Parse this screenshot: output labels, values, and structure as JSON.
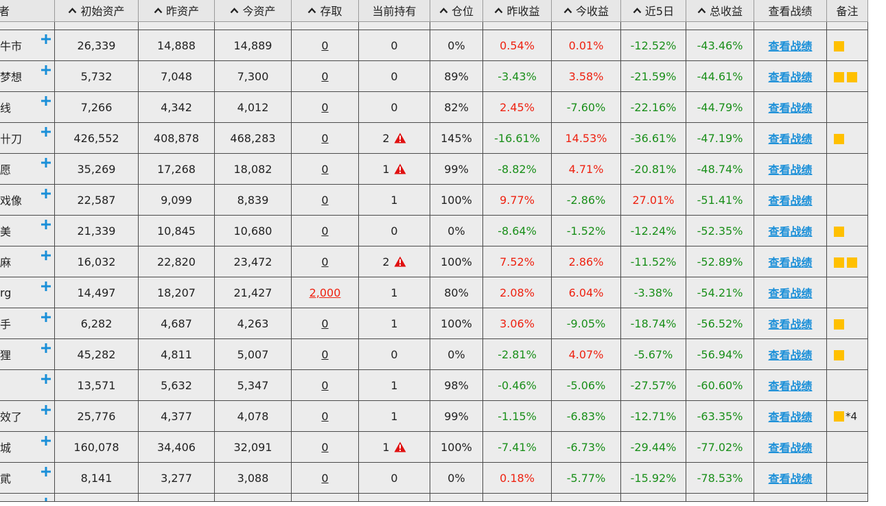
{
  "headers": [
    {
      "key": "name",
      "label": "者",
      "sortable": false
    },
    {
      "key": "initial",
      "label": "初始资产",
      "sortable": true
    },
    {
      "key": "prev",
      "label": "昨资产",
      "sortable": true
    },
    {
      "key": "today",
      "label": "今资产",
      "sortable": true
    },
    {
      "key": "deposit",
      "label": "存取",
      "sortable": true
    },
    {
      "key": "holding",
      "label": "当前持有",
      "sortable": false
    },
    {
      "key": "position",
      "label": "仓位",
      "sortable": true
    },
    {
      "key": "prev_ret",
      "label": "昨收益",
      "sortable": true
    },
    {
      "key": "today_ret",
      "label": "今收益",
      "sortable": true
    },
    {
      "key": "ret5",
      "label": "近5日",
      "sortable": true
    },
    {
      "key": "total_ret",
      "label": "总收益",
      "sortable": true
    },
    {
      "key": "view",
      "label": "查看战绩",
      "sortable": false
    },
    {
      "key": "note",
      "label": "备注",
      "sortable": false
    }
  ],
  "colors": {
    "red": "#ee2211",
    "green": "#1a8f1a",
    "link": "#1a8fd8",
    "note": "#ffc000",
    "plus": "#1a8fd8",
    "warn": "#e01010"
  },
  "view_label": "查看战绩",
  "rows": [
    {
      "name": "牛市",
      "initial": "26,339",
      "prev": "14,888",
      "today": "14,889",
      "deposit": "0",
      "holding": "0",
      "warn": false,
      "position": "0%",
      "prev_ret": "0.54%",
      "today_ret": "0.01%",
      "ret5": "-12.52%",
      "total_ret": "-43.46%",
      "note_squares": 1,
      "note_text": ""
    },
    {
      "name": "梦想",
      "initial": "5,732",
      "prev": "7,048",
      "today": "7,300",
      "deposit": "0",
      "holding": "0",
      "warn": false,
      "position": "89%",
      "prev_ret": "-3.43%",
      "today_ret": "3.58%",
      "ret5": "-21.59%",
      "total_ret": "-44.61%",
      "note_squares": 2,
      "note_text": ""
    },
    {
      "name": "线",
      "initial": "7,266",
      "prev": "4,342",
      "today": "4,012",
      "deposit": "0",
      "holding": "0",
      "warn": false,
      "position": "82%",
      "prev_ret": "2.45%",
      "today_ret": "-7.60%",
      "ret5": "-22.16%",
      "total_ret": "-44.79%",
      "note_squares": 0,
      "note_text": ""
    },
    {
      "name": "卄刀",
      "initial": "426,552",
      "prev": "408,878",
      "today": "468,283",
      "deposit": "0",
      "holding": "2",
      "warn": true,
      "position": "145%",
      "prev_ret": "-16.61%",
      "today_ret": "14.53%",
      "ret5": "-36.61%",
      "total_ret": "-47.19%",
      "note_squares": 1,
      "note_text": ""
    },
    {
      "name": "愿",
      "initial": "35,269",
      "prev": "17,268",
      "today": "18,082",
      "deposit": "0",
      "holding": "1",
      "warn": true,
      "position": "99%",
      "prev_ret": "-8.82%",
      "today_ret": "4.71%",
      "ret5": "-20.81%",
      "total_ret": "-48.74%",
      "note_squares": 0,
      "note_text": ""
    },
    {
      "name": "戏像",
      "initial": "22,587",
      "prev": "9,099",
      "today": "8,839",
      "deposit": "0",
      "holding": "1",
      "warn": false,
      "position": "100%",
      "prev_ret": "9.77%",
      "today_ret": "-2.86%",
      "ret5": "27.01%",
      "total_ret": "-51.41%",
      "note_squares": 0,
      "note_text": ""
    },
    {
      "name": "美",
      "initial": "21,339",
      "prev": "10,845",
      "today": "10,680",
      "deposit": "0",
      "holding": "0",
      "warn": false,
      "position": "0%",
      "prev_ret": "-8.64%",
      "today_ret": "-1.52%",
      "ret5": "-12.24%",
      "total_ret": "-52.35%",
      "note_squares": 1,
      "note_text": ""
    },
    {
      "name": "麻",
      "initial": "16,032",
      "prev": "22,820",
      "today": "23,472",
      "deposit": "0",
      "holding": "2",
      "warn": true,
      "position": "100%",
      "prev_ret": "7.52%",
      "today_ret": "2.86%",
      "ret5": "-11.52%",
      "total_ret": "-52.89%",
      "note_squares": 2,
      "note_text": ""
    },
    {
      "name": "rg",
      "initial": "14,497",
      "prev": "18,207",
      "today": "21,427",
      "deposit": "2,000",
      "holding": "1",
      "warn": false,
      "position": "80%",
      "prev_ret": "2.08%",
      "today_ret": "6.04%",
      "ret5": "-3.38%",
      "total_ret": "-54.21%",
      "note_squares": 0,
      "note_text": ""
    },
    {
      "name": "手",
      "initial": "6,282",
      "prev": "4,687",
      "today": "4,263",
      "deposit": "0",
      "holding": "1",
      "warn": false,
      "position": "100%",
      "prev_ret": "3.06%",
      "today_ret": "-9.05%",
      "ret5": "-18.74%",
      "total_ret": "-56.52%",
      "note_squares": 1,
      "note_text": ""
    },
    {
      "name": "狸",
      "initial": "45,282",
      "prev": "4,811",
      "today": "5,007",
      "deposit": "0",
      "holding": "0",
      "warn": false,
      "position": "0%",
      "prev_ret": "-2.81%",
      "today_ret": "4.07%",
      "ret5": "-5.67%",
      "total_ret": "-56.94%",
      "note_squares": 1,
      "note_text": ""
    },
    {
      "name": "",
      "initial": "13,571",
      "prev": "5,632",
      "today": "5,347",
      "deposit": "0",
      "holding": "1",
      "warn": false,
      "position": "98%",
      "prev_ret": "-0.46%",
      "today_ret": "-5.06%",
      "ret5": "-27.57%",
      "total_ret": "-60.60%",
      "note_squares": 0,
      "note_text": ""
    },
    {
      "name": "效了",
      "initial": "25,776",
      "prev": "4,377",
      "today": "4,078",
      "deposit": "0",
      "holding": "1",
      "warn": false,
      "position": "99%",
      "prev_ret": "-1.15%",
      "today_ret": "-6.83%",
      "ret5": "-12.71%",
      "total_ret": "-63.35%",
      "note_squares": 1,
      "note_text": "*4"
    },
    {
      "name": "城",
      "initial": "160,078",
      "prev": "34,406",
      "today": "32,091",
      "deposit": "0",
      "holding": "1",
      "warn": true,
      "position": "100%",
      "prev_ret": "-7.41%",
      "today_ret": "-6.73%",
      "ret5": "-29.44%",
      "total_ret": "-77.02%",
      "note_squares": 0,
      "note_text": ""
    },
    {
      "name": "貮",
      "initial": "8,141",
      "prev": "3,277",
      "today": "3,088",
      "deposit": "0",
      "holding": "0",
      "warn": false,
      "position": "0%",
      "prev_ret": "0.18%",
      "today_ret": "-5.77%",
      "ret5": "-15.92%",
      "total_ret": "-78.53%",
      "note_squares": 0,
      "note_text": ""
    }
  ]
}
